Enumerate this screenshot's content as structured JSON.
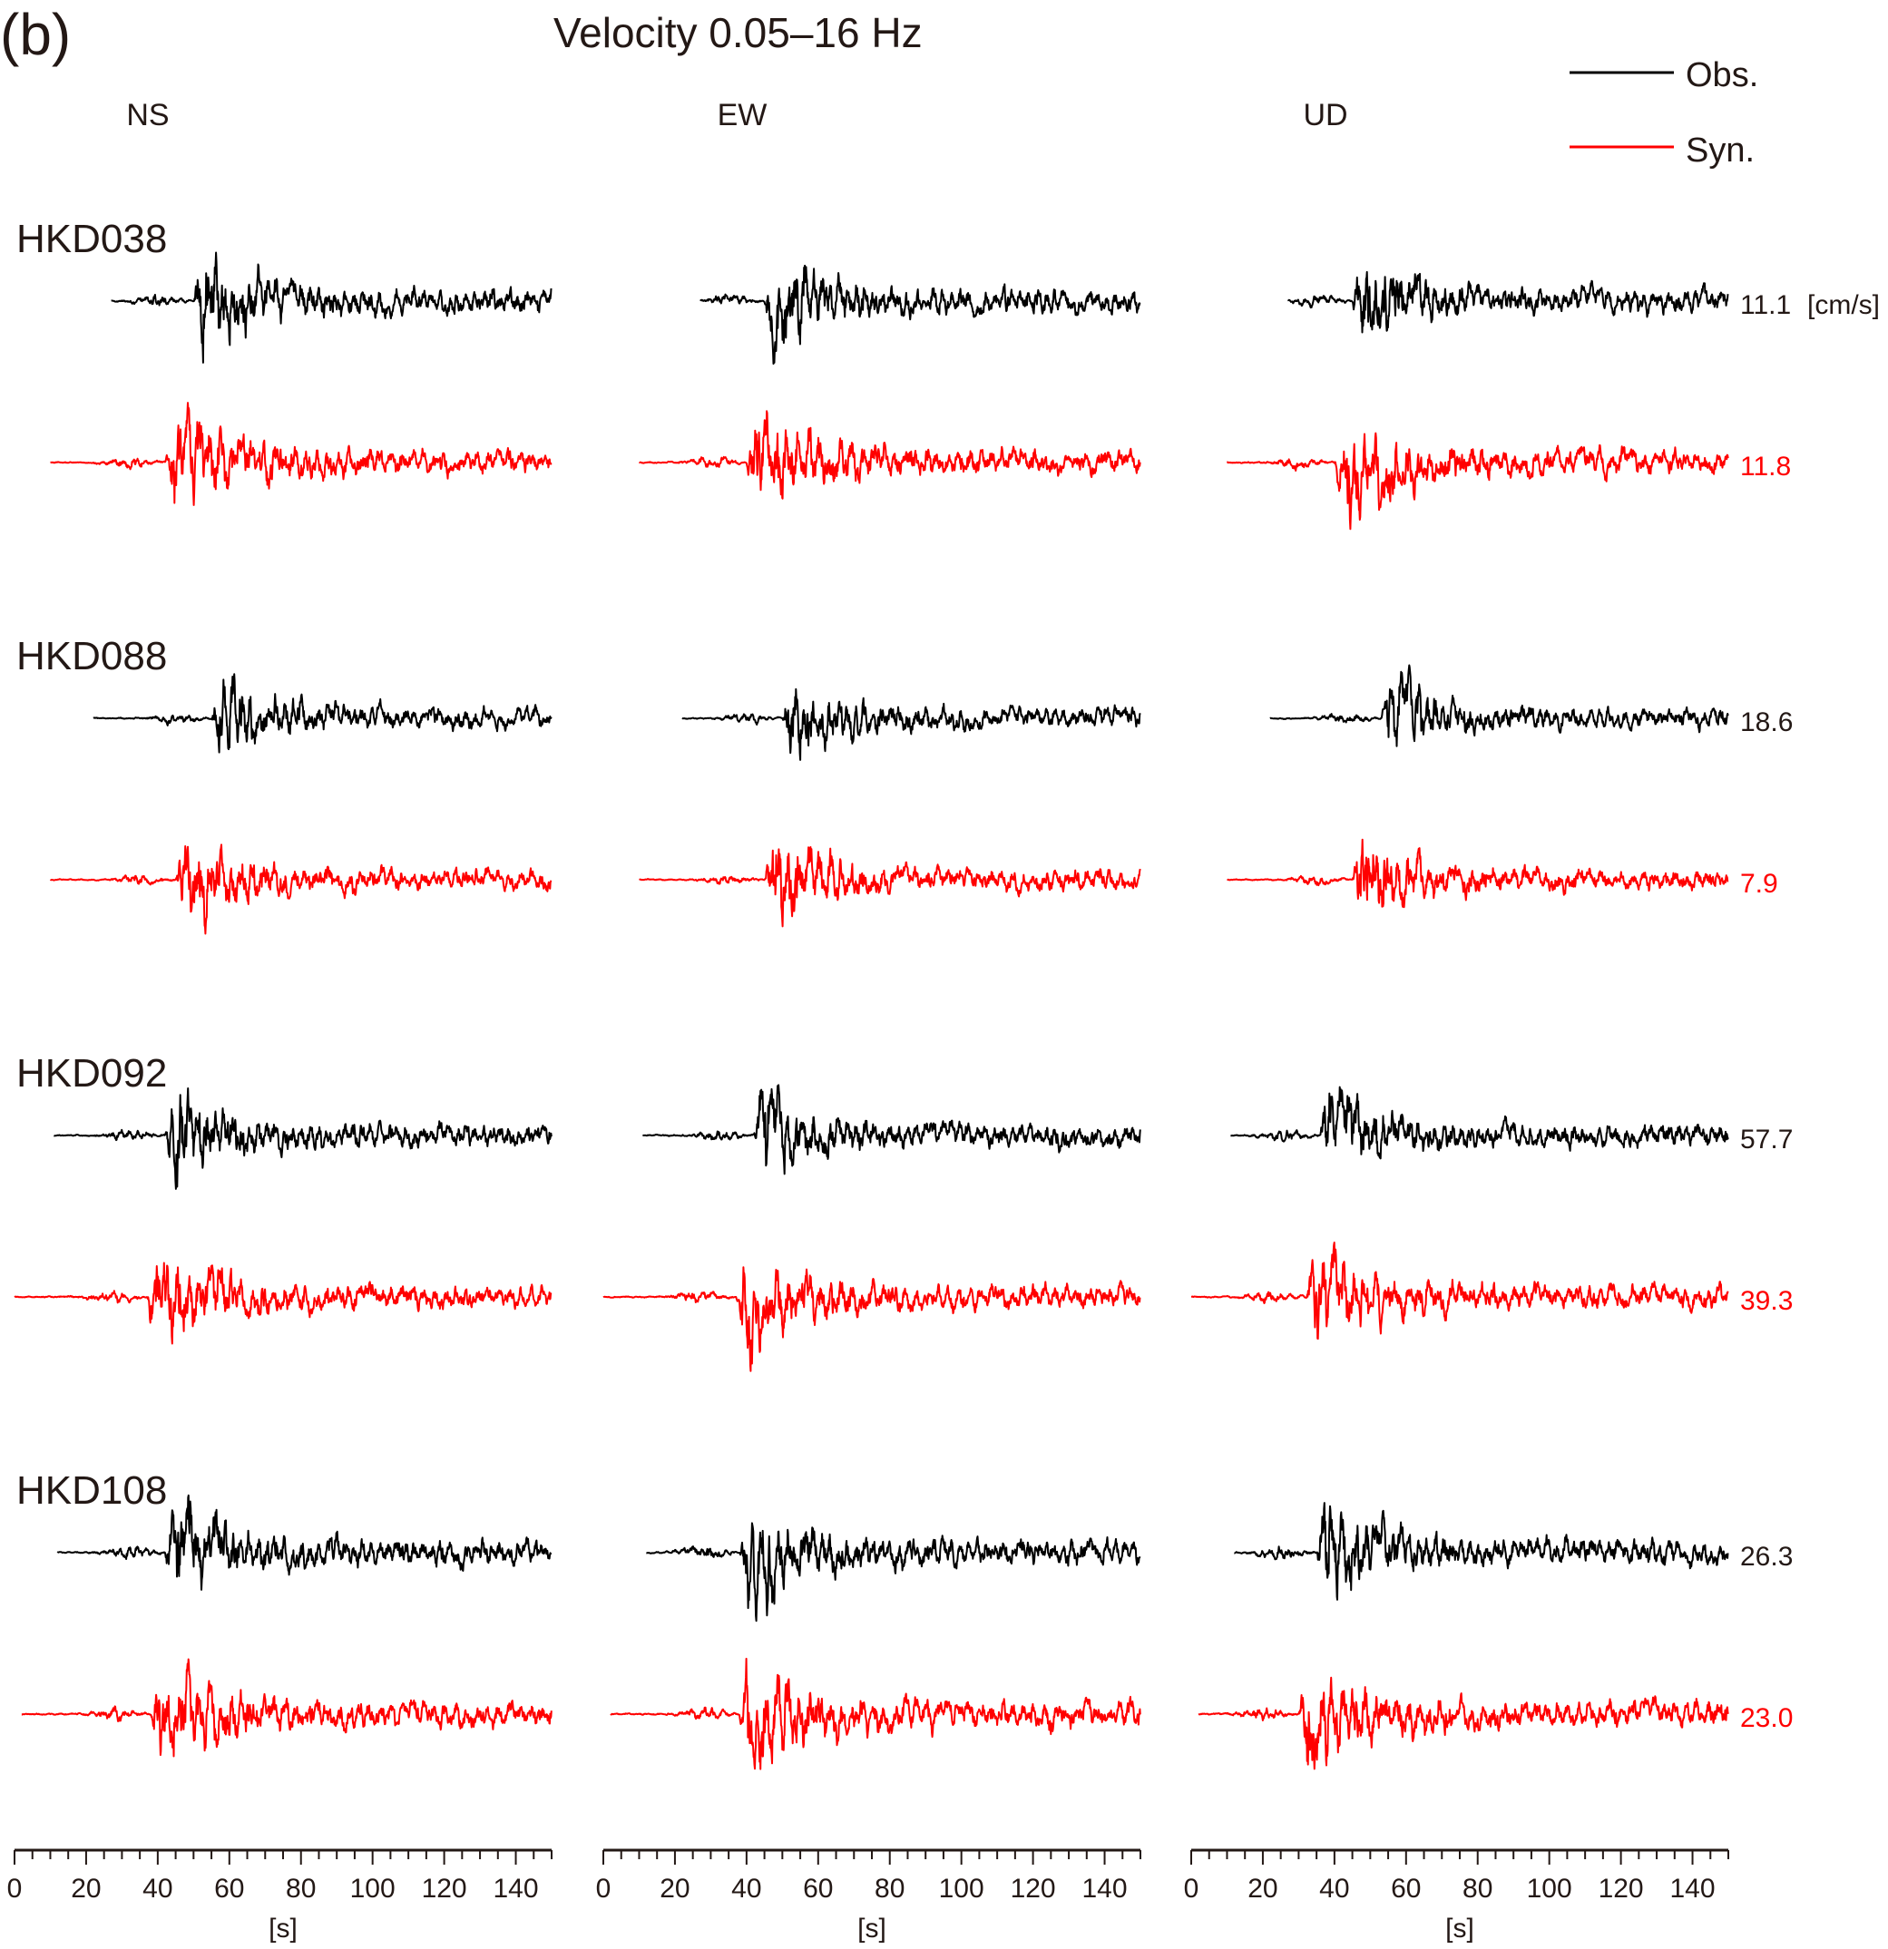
{
  "panel_label": "(b)",
  "title": "Velocity 0.05–16 Hz",
  "legend": {
    "placement": "top-right",
    "items": [
      {
        "label": "Obs.",
        "color": "#000000"
      },
      {
        "label": "Syn.",
        "color": "#ff0000"
      }
    ]
  },
  "chart_data": {
    "type": "line",
    "title": "Velocity 0.05–16 Hz",
    "components": [
      "NS",
      "EW",
      "UD"
    ],
    "xlabel": "[s]",
    "xlim": [
      0,
      150
    ],
    "xticks": [
      0,
      20,
      40,
      60,
      80,
      100,
      120,
      140
    ],
    "peak_unit": "[cm/s]",
    "colors": {
      "obs": "#000000",
      "syn": "#ff0000"
    },
    "stations": [
      {
        "name": "HKD038",
        "obs_peak": "11.1",
        "syn_peak": "11.8",
        "traces": {
          "NS": {
            "obs_start": 27,
            "syn_start": 10,
            "obs_onset": 50,
            "syn_onset": 42
          },
          "EW": {
            "obs_start": 27,
            "syn_start": 10,
            "obs_onset": 45,
            "syn_onset": 40
          },
          "UD": {
            "obs_start": 27,
            "syn_start": 10,
            "obs_onset": 45,
            "syn_onset": 40
          }
        }
      },
      {
        "name": "HKD088",
        "obs_peak": "18.6",
        "syn_peak": "7.9",
        "traces": {
          "NS": {
            "obs_start": 22,
            "syn_start": 10,
            "obs_onset": 55,
            "syn_onset": 45
          },
          "EW": {
            "obs_start": 22,
            "syn_start": 10,
            "obs_onset": 50,
            "syn_onset": 45
          },
          "UD": {
            "obs_start": 22,
            "syn_start": 10,
            "obs_onset": 53,
            "syn_onset": 45
          }
        }
      },
      {
        "name": "HKD092",
        "obs_peak": "57.7",
        "syn_peak": "39.3",
        "traces": {
          "NS": {
            "obs_start": 11,
            "syn_start": 0,
            "obs_onset": 42,
            "syn_onset": 37
          },
          "EW": {
            "obs_start": 11,
            "syn_start": 0,
            "obs_onset": 42,
            "syn_onset": 37
          },
          "UD": {
            "obs_start": 11,
            "syn_start": 0,
            "obs_onset": 36,
            "syn_onset": 32
          }
        }
      },
      {
        "name": "HKD108",
        "obs_peak": "26.3",
        "syn_peak": "23.0",
        "traces": {
          "NS": {
            "obs_start": 12,
            "syn_start": 2,
            "obs_onset": 42,
            "syn_onset": 38
          },
          "EW": {
            "obs_start": 12,
            "syn_start": 2,
            "obs_onset": 38,
            "syn_onset": 38
          },
          "UD": {
            "obs_start": 12,
            "syn_start": 2,
            "obs_onset": 35,
            "syn_onset": 30
          }
        }
      }
    ]
  }
}
